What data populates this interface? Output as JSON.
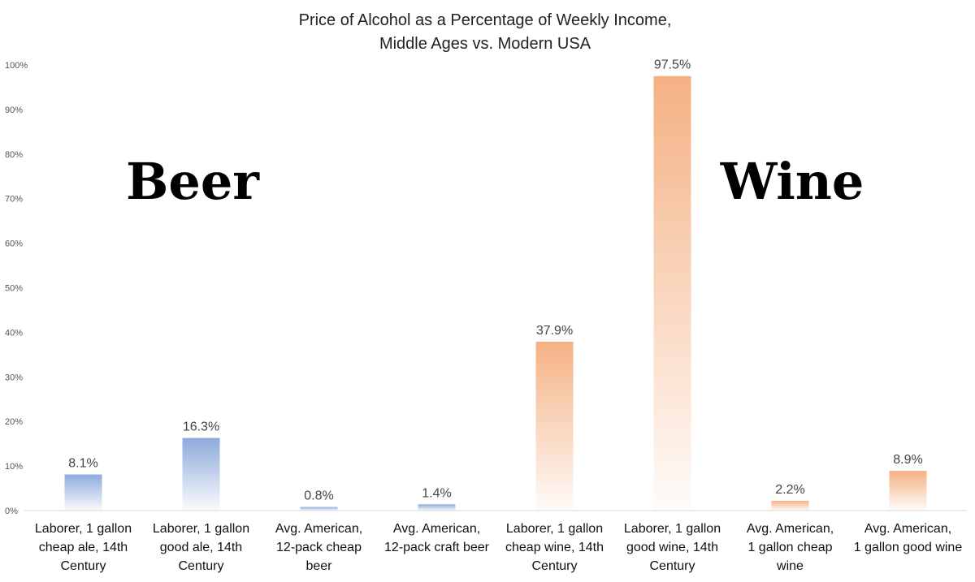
{
  "chart_data": {
    "type": "bar",
    "title": [
      "Price of Alcohol as a Percentage of Weekly Income,",
      "Middle Ages vs. Modern USA"
    ],
    "xlabel": "",
    "ylabel": "",
    "ylim": [
      0,
      100
    ],
    "yticks": [
      "0%",
      "10%",
      "20%",
      "30%",
      "40%",
      "50%",
      "60%",
      "70%",
      "80%",
      "90%",
      "100%"
    ],
    "grid": false,
    "categories": [
      [
        "Laborer, 1 gallon",
        "cheap ale, 14th",
        "Century"
      ],
      [
        "Laborer, 1 gallon",
        "good ale, 14th",
        "Century"
      ],
      [
        "Avg. American,",
        "12-pack cheap",
        "beer"
      ],
      [
        "Avg. American,",
        "12-pack craft beer"
      ],
      [
        "Laborer, 1 gallon",
        "cheap wine, 14th",
        "Century"
      ],
      [
        "Laborer, 1 gallon",
        "good wine, 14th",
        "Century"
      ],
      [
        "Avg. American,",
        "1 gallon cheap",
        "wine"
      ],
      [
        "Avg. American,",
        "1 gallon good wine"
      ]
    ],
    "values": [
      8.1,
      16.3,
      0.8,
      1.4,
      37.9,
      97.5,
      2.2,
      8.9
    ],
    "value_labels": [
      "8.1%",
      "16.3%",
      "0.8%",
      "1.4%",
      "37.9%",
      "97.5%",
      "2.2%",
      "8.9%"
    ],
    "groups": [
      "beer",
      "beer",
      "beer",
      "beer",
      "wine",
      "wine",
      "wine",
      "wine"
    ],
    "colors": {
      "beer": "#8eaadb",
      "wine": "#f4b183",
      "axis": "#d9d9d9"
    },
    "annotations": [
      {
        "text": "Beer",
        "group": "beer"
      },
      {
        "text": "Wine",
        "group": "wine"
      }
    ]
  }
}
